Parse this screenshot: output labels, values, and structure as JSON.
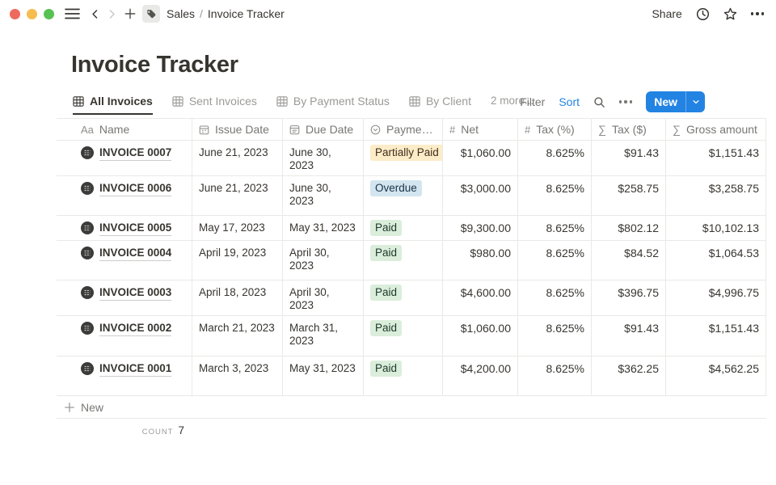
{
  "topbar": {
    "breadcrumb": {
      "section": "Sales",
      "separator": "/",
      "page": "Invoice Tracker"
    },
    "share_label": "Share"
  },
  "page": {
    "title": "Invoice Tracker"
  },
  "views": {
    "tabs": [
      {
        "label": "All Invoices",
        "active": true
      },
      {
        "label": "Sent Invoices",
        "active": false
      },
      {
        "label": "By Payment Status",
        "active": false
      },
      {
        "label": "By Client",
        "active": false
      }
    ],
    "more_label": "2 more...",
    "filter_label": "Filter",
    "sort_label": "Sort",
    "new_button_label": "New"
  },
  "table": {
    "columns": [
      {
        "icon": "text",
        "label": "Name"
      },
      {
        "icon": "calendar",
        "label": "Issue Date"
      },
      {
        "icon": "calendar-alt",
        "label": "Due Date"
      },
      {
        "icon": "select",
        "label": "Payment …"
      },
      {
        "icon": "number",
        "label": "Net"
      },
      {
        "icon": "number",
        "label": "Tax (%)"
      },
      {
        "icon": "formula",
        "label": "Tax ($)"
      },
      {
        "icon": "formula",
        "label": "Gross amount"
      }
    ],
    "rows": [
      {
        "name": "INVOICE 0007",
        "issue_date": "June 21, 2023",
        "due_date": "June 30, 2023",
        "payment_status": "Partially Paid",
        "status_tone": "yellow",
        "net": "$1,060.00",
        "tax_pct": "8.625%",
        "tax_usd": "$91.43",
        "gross": "$1,151.43"
      },
      {
        "name": "INVOICE 0006",
        "issue_date": "June 21, 2023",
        "due_date": "June 30, 2023",
        "payment_status": "Overdue",
        "status_tone": "blue",
        "net": "$3,000.00",
        "tax_pct": "8.625%",
        "tax_usd": "$258.75",
        "gross": "$3,258.75"
      },
      {
        "name": "INVOICE 0005",
        "issue_date": "May 17, 2023",
        "due_date": "May 31, 2023",
        "payment_status": "Paid",
        "status_tone": "green",
        "net": "$9,300.00",
        "tax_pct": "8.625%",
        "tax_usd": "$802.12",
        "gross": "$10,102.13"
      },
      {
        "name": "INVOICE 0004",
        "issue_date": "April 19, 2023",
        "due_date": "April 30, 2023",
        "payment_status": "Paid",
        "status_tone": "green",
        "net": "$980.00",
        "tax_pct": "8.625%",
        "tax_usd": "$84.52",
        "gross": "$1,064.53"
      },
      {
        "name": "INVOICE 0003",
        "issue_date": "April 18, 2023",
        "due_date": "April 30, 2023",
        "payment_status": "Paid",
        "status_tone": "green",
        "net": "$4,600.00",
        "tax_pct": "8.625%",
        "tax_usd": "$396.75",
        "gross": "$4,996.75"
      },
      {
        "name": "INVOICE 0002",
        "issue_date": "March 21, 2023",
        "due_date": "March 31, 2023",
        "payment_status": "Paid",
        "status_tone": "green",
        "net": "$1,060.00",
        "tax_pct": "8.625%",
        "tax_usd": "$91.43",
        "gross": "$1,151.43"
      },
      {
        "name": "INVOICE 0001",
        "issue_date": "March 3, 2023",
        "due_date": "May 31, 2023",
        "payment_status": "Paid",
        "status_tone": "green",
        "net": "$4,200.00",
        "tax_pct": "8.625%",
        "tax_usd": "$362.25",
        "gross": "$4,562.25"
      }
    ],
    "new_row_label": "New",
    "count_label": "COUNT",
    "count_value": "7"
  },
  "colors": {
    "accent_blue": "#2383e2",
    "badge_yellow_bg": "#fdecc8",
    "badge_yellow_text": "#402c1b",
    "badge_blue_bg": "#d3e5ef",
    "badge_blue_text": "#183347",
    "badge_green_bg": "#dbeddb",
    "badge_green_text": "#1c3829",
    "traffic_red": "#ed6a5e",
    "traffic_yellow": "#f5bd4f",
    "traffic_green": "#58c153"
  }
}
